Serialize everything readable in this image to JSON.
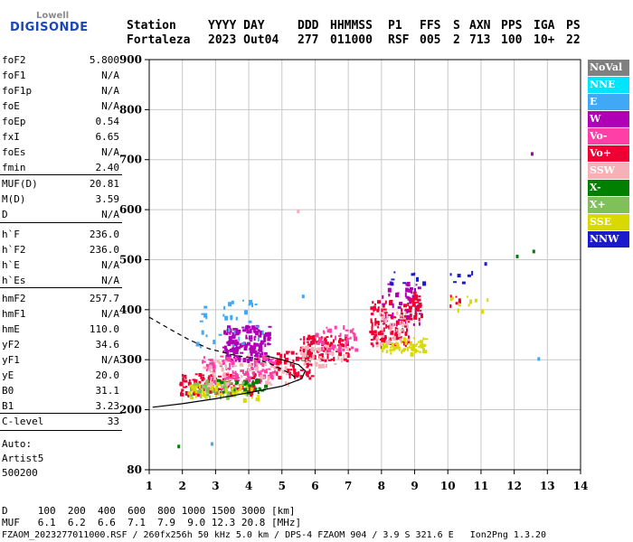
{
  "logo": {
    "top": "Lowell",
    "main": "DIGISONDE"
  },
  "header": {
    "station_label": "Station",
    "station_value": "Fortaleza",
    "date_label": "YYYY DAY",
    "date_value": "2023 Out04",
    "ddd_label": "DDD",
    "ddd_value": "277",
    "time_label": "HHMMSS",
    "time_value": "011000",
    "p1_label": "P1",
    "p1_value": "RSF",
    "ffs_label": "FFS",
    "ffs_value": "005",
    "s_label": "S",
    "s_value": "2",
    "axn_label": "AXN",
    "axn_value": "713",
    "pps_label": "PPS",
    "pps_value": "100",
    "iga_label": "IGA",
    "iga_value": "10+",
    "ps_label": "PS",
    "ps_value": "22"
  },
  "params_group1": [
    {
      "name": "foF2",
      "value": "5.800"
    },
    {
      "name": "foF1",
      "value": "N/A"
    },
    {
      "name": "foF1p",
      "value": "N/A"
    },
    {
      "name": "foE",
      "value": "N/A"
    },
    {
      "name": "foEp",
      "value": "0.54"
    },
    {
      "name": "fxI",
      "value": "6.65"
    },
    {
      "name": "foEs",
      "value": "N/A"
    },
    {
      "name": "fmin",
      "value": "2.40"
    }
  ],
  "params_group2": [
    {
      "name": "MUF(D)",
      "value": "20.81"
    },
    {
      "name": "M(D)",
      "value": "3.59"
    },
    {
      "name": "D",
      "value": "N/A"
    }
  ],
  "params_group3": [
    {
      "name": "h`F",
      "value": "236.0"
    },
    {
      "name": "h`F2",
      "value": "236.0"
    },
    {
      "name": "h`E",
      "value": "N/A"
    },
    {
      "name": "h`Es",
      "value": "N/A"
    }
  ],
  "params_group4": [
    {
      "name": "hmF2",
      "value": "257.7"
    },
    {
      "name": "hmF1",
      "value": "N/A"
    },
    {
      "name": "hmE",
      "value": "110.0"
    },
    {
      "name": "yF2",
      "value": "34.6"
    },
    {
      "name": "yF1",
      "value": "N/A"
    },
    {
      "name": "yE",
      "value": "20.0"
    },
    {
      "name": "B0",
      "value": "31.1"
    },
    {
      "name": "B1",
      "value": "3.23"
    }
  ],
  "c_level": {
    "name": "C-level",
    "value": "33"
  },
  "autoscale": {
    "line1": "Auto:",
    "line2": "Artist5",
    "line3": "500200"
  },
  "legend": [
    {
      "label": "NoVal",
      "color": "#808080"
    },
    {
      "label": "NNE",
      "color": "#00e5ff"
    },
    {
      "label": "E",
      "color": "#3fa9f5"
    },
    {
      "label": "W",
      "color": "#b000b5"
    },
    {
      "label": "Vo-",
      "color": "#ff3fa8"
    },
    {
      "label": "Vo+",
      "color": "#ee0033"
    },
    {
      "label": "SSW",
      "color": "#f7b0b8"
    },
    {
      "label": "X-",
      "color": "#007f00"
    },
    {
      "label": "X+",
      "color": "#7fc05a"
    },
    {
      "label": "SSE",
      "color": "#d9d900"
    },
    {
      "label": "NNW",
      "color": "#1a1acc"
    }
  ],
  "bottom": {
    "d_row": "D     100  200  400  600  800 1000 1500 3000 [km]",
    "muf_row": "MUF   6.1  6.2  6.6  7.1  7.9  9.0 12.3 20.8 [MHz]",
    "footer": "FZAOM_2023277011000.RSF / 260fx256h 50 kHz 5.0 km / DPS-4 FZAOM 904 / 3.9 S 321.6 E   Ion2Png 1.3.20"
  },
  "chart_data": {
    "type": "scatter",
    "xlim": [
      1,
      14
    ],
    "ylim": [
      80,
      900
    ],
    "x_ticks": [
      1,
      2,
      3,
      4,
      5,
      6,
      7,
      8,
      9,
      10,
      11,
      12,
      13,
      14
    ],
    "y_ticks": [
      80,
      200,
      300,
      400,
      500,
      600,
      700,
      800,
      900
    ],
    "grid": true,
    "trace_clusters": [
      {
        "color": "#b000b5",
        "x": [
          3.2,
          4.6
        ],
        "y": [
          300,
          370
        ],
        "density": 170
      },
      {
        "color": "#ee0033",
        "x": [
          1.9,
          4.2
        ],
        "y": [
          232,
          275
        ],
        "density": 130
      },
      {
        "color": "#ff3fa8",
        "x": [
          2.5,
          4.8
        ],
        "y": [
          260,
          310
        ],
        "density": 110
      },
      {
        "color": "#7fc05a",
        "x": [
          2.2,
          4.0
        ],
        "y": [
          228,
          262
        ],
        "density": 60
      },
      {
        "color": "#d9d900",
        "x": [
          2.0,
          4.3
        ],
        "y": [
          222,
          255
        ],
        "density": 50
      },
      {
        "color": "#3fa9f5",
        "x": [
          2.4,
          4.5
        ],
        "y": [
          330,
          420
        ],
        "density": 35
      },
      {
        "color": "#f7b0b8",
        "x": [
          2.6,
          5.2
        ],
        "y": [
          250,
          300
        ],
        "density": 50
      },
      {
        "color": "#007f00",
        "x": [
          3.0,
          4.5
        ],
        "y": [
          235,
          265
        ],
        "density": 25
      },
      {
        "color": "#ee0033",
        "x": [
          4.8,
          5.9
        ],
        "y": [
          260,
          320
        ],
        "density": 60
      },
      {
        "color": "#ee0033",
        "x": [
          5.5,
          7.0
        ],
        "y": [
          300,
          350
        ],
        "density": 90
      },
      {
        "color": "#f7b0b8",
        "x": [
          5.5,
          7.0
        ],
        "y": [
          290,
          330
        ],
        "density": 45
      },
      {
        "color": "#ff3fa8",
        "x": [
          6.0,
          7.2
        ],
        "y": [
          320,
          370
        ],
        "density": 40
      },
      {
        "color": "#ee0033",
        "x": [
          7.6,
          8.8
        ],
        "y": [
          330,
          420
        ],
        "density": 110
      },
      {
        "color": "#b000b5",
        "x": [
          8.0,
          9.2
        ],
        "y": [
          370,
          460
        ],
        "density": 50
      },
      {
        "color": "#d9d900",
        "x": [
          8.0,
          9.3
        ],
        "y": [
          315,
          345
        ],
        "density": 60
      },
      {
        "color": "#f7b0b8",
        "x": [
          7.8,
          8.8
        ],
        "y": [
          330,
          400
        ],
        "density": 40
      },
      {
        "color": "#ee0033",
        "x": [
          8.8,
          9.2
        ],
        "y": [
          380,
          440
        ],
        "density": 30
      },
      {
        "color": "#1a1acc",
        "x": [
          8.2,
          10.8
        ],
        "y": [
          455,
          480
        ],
        "density": 14
      },
      {
        "color": "#d9d900",
        "x": [
          10.0,
          11.3
        ],
        "y": [
          400,
          430
        ],
        "density": 10
      },
      {
        "color": "#ee0033",
        "x": [
          10.0,
          10.5
        ],
        "y": [
          395,
          430
        ],
        "density": 6
      }
    ],
    "isolated_points": [
      {
        "x": 12.5,
        "y": 715,
        "color": "#b000b5"
      },
      {
        "x": 12.55,
        "y": 520,
        "color": "#007f00"
      },
      {
        "x": 12.05,
        "y": 510,
        "color": "#007f00"
      },
      {
        "x": 11.1,
        "y": 495,
        "color": "#1a1acc"
      },
      {
        "x": 12.7,
        "y": 305,
        "color": "#3fa9f5"
      },
      {
        "x": 1.85,
        "y": 130,
        "color": "#007f00"
      },
      {
        "x": 2.85,
        "y": 135,
        "color": "#3fa9f5"
      },
      {
        "x": 5.45,
        "y": 600,
        "color": "#f7b0b8"
      },
      {
        "x": 5.6,
        "y": 430,
        "color": "#3fa9f5"
      }
    ],
    "profile_solid": [
      [
        1.1,
        205
      ],
      [
        2.0,
        212
      ],
      [
        3.0,
        222
      ],
      [
        4.0,
        234
      ],
      [
        5.0,
        247
      ],
      [
        5.6,
        262
      ],
      [
        5.7,
        278
      ],
      [
        5.5,
        290
      ],
      [
        5.0,
        300
      ],
      [
        4.5,
        308
      ]
    ],
    "profile_dashed": [
      [
        1.0,
        385
      ],
      [
        1.6,
        362
      ],
      [
        2.2,
        340
      ],
      [
        2.8,
        322
      ],
      [
        3.5,
        310
      ],
      [
        4.2,
        302
      ],
      [
        4.8,
        288
      ],
      [
        5.3,
        270
      ],
      [
        5.5,
        258
      ]
    ]
  }
}
